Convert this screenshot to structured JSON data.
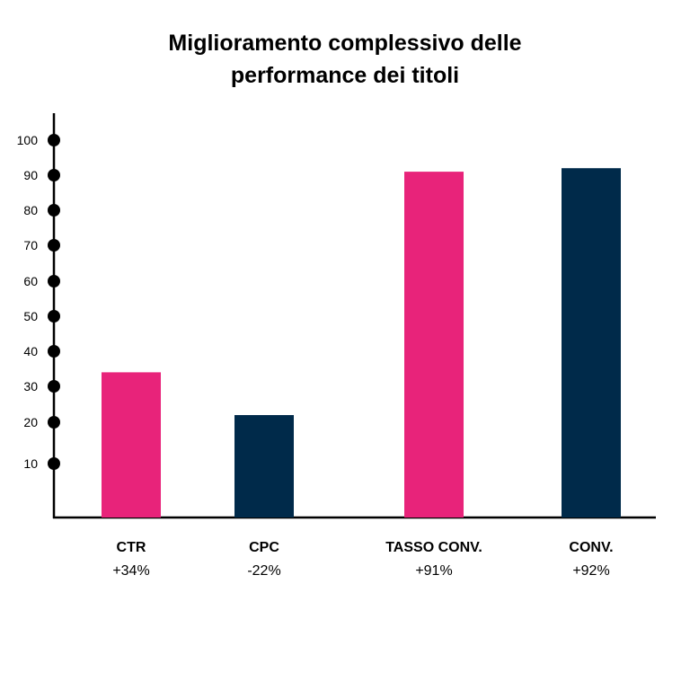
{
  "title_line1": "Miglioramento complessivo delle",
  "title_line2": "performance dei titoli",
  "chart_data": {
    "type": "bar",
    "title": "Miglioramento complessivo delle performance dei titoli",
    "xlabel": "",
    "ylabel": "",
    "ylim": [
      0,
      100
    ],
    "yticks": [
      10,
      20,
      30,
      40,
      50,
      60,
      70,
      80,
      90,
      100
    ],
    "categories": [
      "CTR",
      "CPC",
      "TASSO CONV.",
      "CONV."
    ],
    "value_labels": [
      "+34%",
      "-22%",
      "+91%",
      "+92%"
    ],
    "values": [
      34,
      22,
      91,
      92
    ],
    "colors": [
      "#e8237a",
      "#002a4a",
      "#e8237a",
      "#002a4a"
    ],
    "grid": false,
    "legend": "none"
  }
}
